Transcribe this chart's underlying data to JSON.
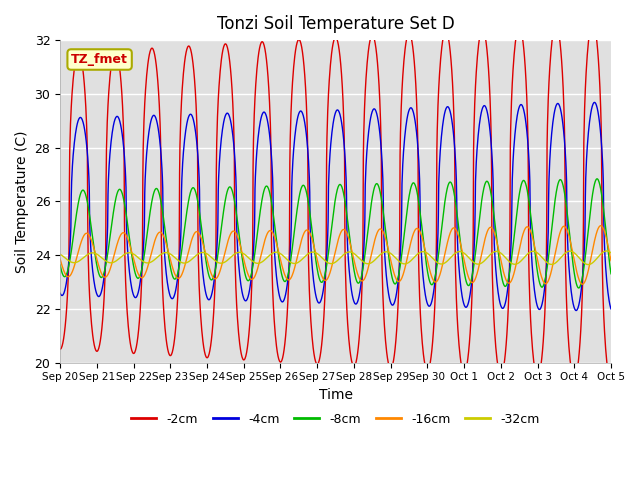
{
  "title": "Tonzi Soil Temperature Set D",
  "xlabel": "Time",
  "ylabel": "Soil Temperature (C)",
  "ylim": [
    20,
    32
  ],
  "n_days": 15,
  "annotation_text": "TZ_fmet",
  "annotation_bg": "#ffffcc",
  "annotation_border": "#aaaa00",
  "annotation_fg": "#cc0000",
  "background_color": "#e0e0e0",
  "tick_labels": [
    "Sep 20",
    "Sep 21",
    "Sep 22",
    "Sep 23",
    "Sep 24",
    "Sep 25",
    "Sep 26",
    "Sep 27",
    "Sep 28",
    "Sep 29",
    "Sep 30",
    "Oct 1",
    "Oct 2",
    "Oct 3",
    "Oct 4",
    "Oct 5"
  ],
  "series": {
    "-2cm": {
      "color": "#dd0000",
      "lw": 1.0
    },
    "-4cm": {
      "color": "#0000dd",
      "lw": 1.0
    },
    "-8cm": {
      "color": "#00bb00",
      "lw": 1.0
    },
    "-16cm": {
      "color": "#ff8800",
      "lw": 1.0
    },
    "-32cm": {
      "color": "#cccc00",
      "lw": 1.0
    }
  },
  "legend_order": [
    "-2cm",
    "-4cm",
    "-8cm",
    "-16cm",
    "-32cm"
  ],
  "series_params": {
    "-2cm": {
      "base": 26.0,
      "amp": 5.5,
      "phase": 0.0,
      "phase_shift": 0.0,
      "sharpness": 2.5,
      "amp_grow": 0.08
    },
    "-4cm": {
      "base": 25.8,
      "amp": 3.3,
      "phase": 0.0,
      "phase_shift": 0.05,
      "sharpness": 2.0,
      "amp_grow": 0.04
    },
    "-8cm": {
      "base": 24.8,
      "amp": 1.6,
      "phase": 0.0,
      "phase_shift": 0.12,
      "sharpness": 1.0,
      "amp_grow": 0.03
    },
    "-16cm": {
      "base": 24.0,
      "amp": 0.8,
      "phase": 0.0,
      "phase_shift": 0.22,
      "sharpness": 1.0,
      "amp_grow": 0.02
    },
    "-32cm": {
      "base": 23.9,
      "amp": 0.18,
      "phase": 0.0,
      "phase_shift": 0.38,
      "sharpness": 1.0,
      "amp_grow": 0.005
    }
  }
}
